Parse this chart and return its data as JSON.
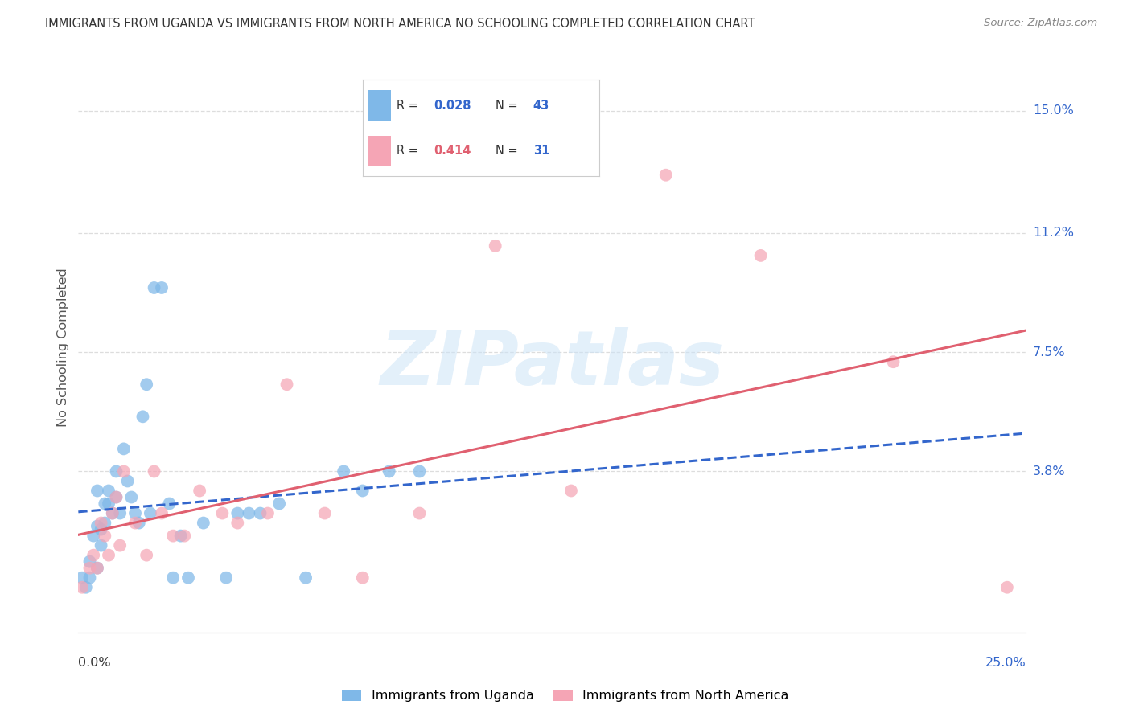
{
  "title": "IMMIGRANTS FROM UGANDA VS IMMIGRANTS FROM NORTH AMERICA NO SCHOOLING COMPLETED CORRELATION CHART",
  "source": "Source: ZipAtlas.com",
  "ylabel": "No Schooling Completed",
  "color_uganda": "#7fb8e8",
  "color_north_america": "#f5a5b5",
  "color_line_uganda": "#3366cc",
  "color_line_north_america": "#e06070",
  "background_color": "#ffffff",
  "grid_color": "#dddddd",
  "watermark_text": "ZIPatlas",
  "R_uganda": "0.028",
  "N_uganda": "43",
  "R_na": "0.414",
  "N_na": "31",
  "xlim": [
    0.0,
    0.25
  ],
  "ylim": [
    -0.012,
    0.165
  ],
  "yticks": [
    0.038,
    0.075,
    0.112,
    0.15
  ],
  "ytick_labels": [
    "3.8%",
    "7.5%",
    "11.2%",
    "15.0%"
  ],
  "uganda_x": [
    0.001,
    0.002,
    0.003,
    0.003,
    0.004,
    0.005,
    0.005,
    0.005,
    0.006,
    0.006,
    0.007,
    0.007,
    0.008,
    0.008,
    0.009,
    0.01,
    0.01,
    0.011,
    0.012,
    0.013,
    0.014,
    0.015,
    0.016,
    0.017,
    0.018,
    0.019,
    0.02,
    0.022,
    0.024,
    0.025,
    0.027,
    0.029,
    0.033,
    0.039,
    0.042,
    0.045,
    0.048,
    0.053,
    0.06,
    0.07,
    0.075,
    0.082,
    0.09
  ],
  "uganda_y": [
    0.005,
    0.002,
    0.01,
    0.005,
    0.018,
    0.032,
    0.021,
    0.008,
    0.02,
    0.015,
    0.028,
    0.022,
    0.028,
    0.032,
    0.025,
    0.038,
    0.03,
    0.025,
    0.045,
    0.035,
    0.03,
    0.025,
    0.022,
    0.055,
    0.065,
    0.025,
    0.095,
    0.095,
    0.028,
    0.005,
    0.018,
    0.005,
    0.022,
    0.005,
    0.025,
    0.025,
    0.025,
    0.028,
    0.005,
    0.038,
    0.032,
    0.038,
    0.038
  ],
  "na_x": [
    0.001,
    0.003,
    0.004,
    0.005,
    0.006,
    0.007,
    0.008,
    0.009,
    0.01,
    0.011,
    0.012,
    0.015,
    0.018,
    0.02,
    0.022,
    0.025,
    0.028,
    0.032,
    0.038,
    0.042,
    0.05,
    0.055,
    0.065,
    0.075,
    0.09,
    0.11,
    0.13,
    0.155,
    0.18,
    0.215,
    0.245
  ],
  "na_y": [
    0.002,
    0.008,
    0.012,
    0.008,
    0.022,
    0.018,
    0.012,
    0.025,
    0.03,
    0.015,
    0.038,
    0.022,
    0.012,
    0.038,
    0.025,
    0.018,
    0.018,
    0.032,
    0.025,
    0.022,
    0.025,
    0.065,
    0.025,
    0.005,
    0.025,
    0.108,
    0.032,
    0.13,
    0.105,
    0.072,
    0.002
  ]
}
